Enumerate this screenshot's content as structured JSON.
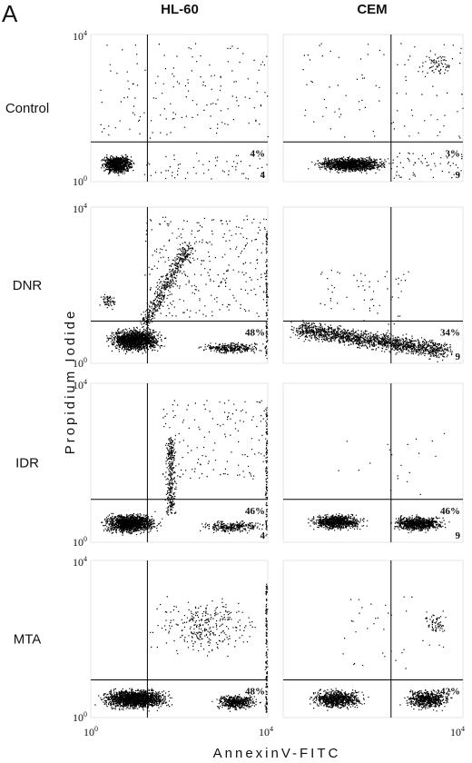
{
  "figure_label": "A",
  "columns": [
    "HL-60",
    "CEM"
  ],
  "rows": [
    {
      "label": "Control",
      "panels": [
        {
          "percent": "4%",
          "count": "4"
        },
        {
          "percent": "3%",
          "count": "9"
        }
      ]
    },
    {
      "label": "DNR",
      "panels": [
        {
          "percent": "48%"
        },
        {
          "percent": "34%",
          "count": "9"
        }
      ]
    },
    {
      "label": "IDR",
      "panels": [
        {
          "percent": "46%",
          "count": "4"
        },
        {
          "percent": "46%",
          "count": "9"
        }
      ]
    },
    {
      "label": "MTA",
      "panels": [
        {
          "percent": "48%"
        },
        {
          "percent": "42%"
        }
      ]
    }
  ],
  "y_axis_label": "Propidium Iodide",
  "x_axis_label": "AnnexinV-FITC",
  "axis_ticks": {
    "low": {
      "base": "10",
      "exp": "0"
    },
    "high": {
      "base": "10",
      "exp": "4"
    }
  }
}
